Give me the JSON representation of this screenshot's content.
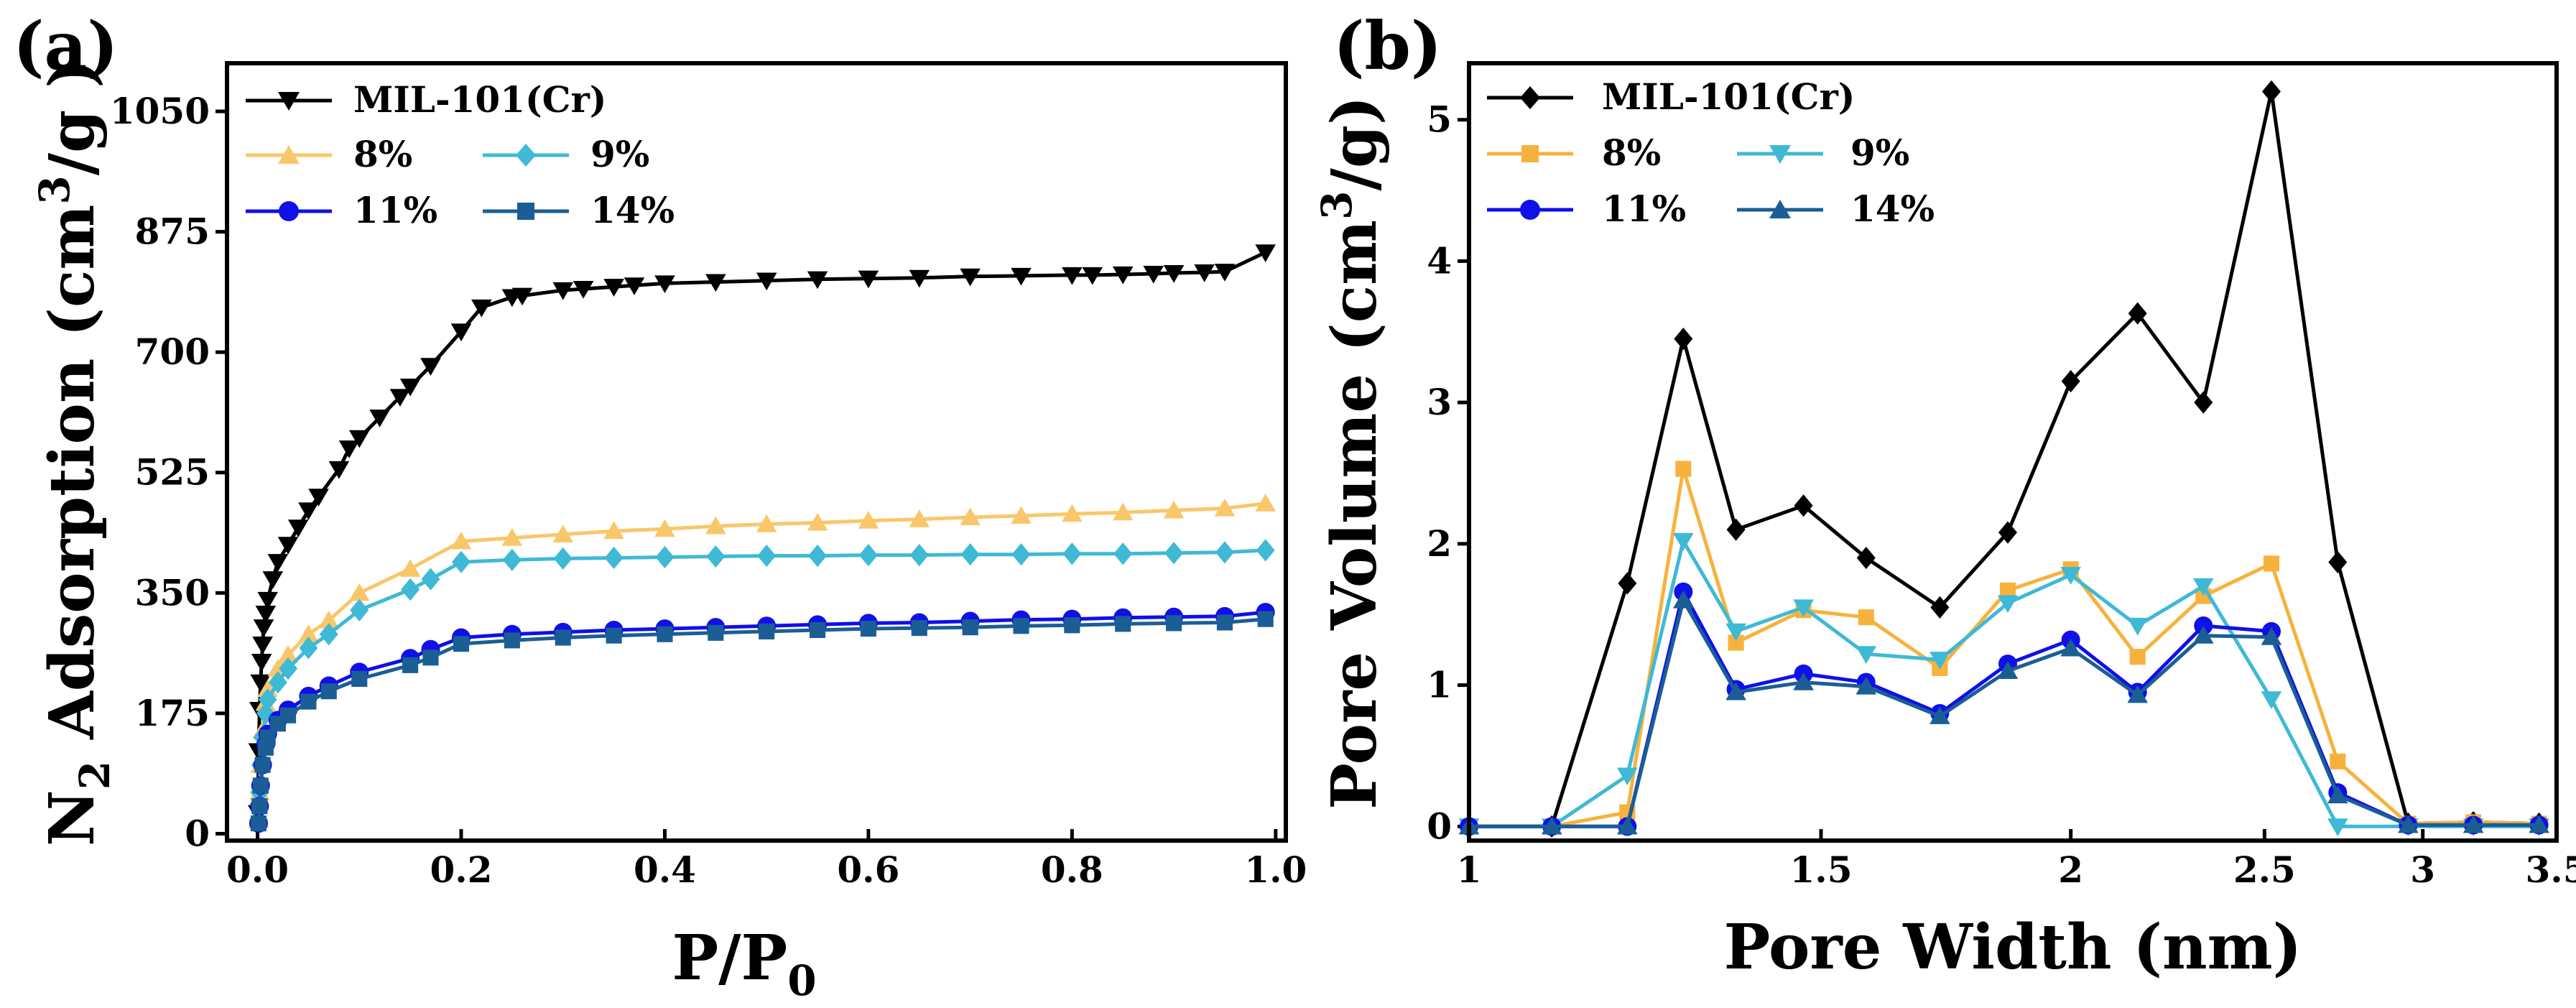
{
  "chart_data": [
    {
      "id": "a",
      "panel_label": "(a)",
      "type": "line",
      "xlabel_main": "P/P",
      "xlabel_sub": "0",
      "ylabel_pre": "N",
      "ylabel_sub": "2",
      "ylabel_mid": " Adsorption (cm",
      "ylabel_sup": "3",
      "ylabel_post": "/g )",
      "xlim": [
        -0.03,
        1.01
      ],
      "ylim": [
        -10,
        1120
      ],
      "x_ticks": [
        0.0,
        0.2,
        0.4,
        0.6,
        0.8,
        1.0
      ],
      "x_tick_labels": [
        "0.0",
        "0.2",
        "0.4",
        "0.6",
        "0.8",
        "1.0"
      ],
      "y_ticks": [
        0,
        175,
        350,
        525,
        700,
        875,
        1050
      ],
      "y_tick_labels": [
        "0",
        "175",
        "350",
        "525",
        "700",
        "875",
        "1050"
      ],
      "legend": [
        "MIL-101(Cr)",
        "8%",
        "9%",
        "11%",
        "14%"
      ],
      "series": [
        {
          "name": "MIL-101(Cr)",
          "color": "#000000",
          "marker": "triangle-down",
          "x": [
            0.0005,
            0.001,
            0.002,
            0.003,
            0.004,
            0.005,
            0.006,
            0.008,
            0.01,
            0.015,
            0.02,
            0.03,
            0.04,
            0.05,
            0.06,
            0.08,
            0.09,
            0.1,
            0.12,
            0.14,
            0.15,
            0.17,
            0.2,
            0.22,
            0.25,
            0.26,
            0.3,
            0.32,
            0.35,
            0.37,
            0.4,
            0.45,
            0.5,
            0.55,
            0.6,
            0.65,
            0.7,
            0.75,
            0.8,
            0.82,
            0.85,
            0.88,
            0.9,
            0.93,
            0.95,
            0.99
          ],
          "y": [
            30,
            120,
            180,
            220,
            250,
            275,
            300,
            320,
            340,
            370,
            395,
            420,
            445,
            470,
            490,
            530,
            560,
            575,
            605,
            635,
            650,
            680,
            730,
            765,
            780,
            782,
            790,
            792,
            795,
            797,
            800,
            802,
            804,
            806,
            807,
            808,
            810,
            811,
            812,
            812,
            813,
            814,
            815,
            816,
            817,
            845
          ]
        },
        {
          "name": "8%",
          "color": "#F9C76A",
          "marker": "triangle-up",
          "x": [
            0.001,
            0.002,
            0.003,
            0.005,
            0.008,
            0.01,
            0.02,
            0.03,
            0.05,
            0.07,
            0.1,
            0.15,
            0.2,
            0.25,
            0.3,
            0.35,
            0.4,
            0.45,
            0.5,
            0.55,
            0.6,
            0.65,
            0.7,
            0.75,
            0.8,
            0.85,
            0.9,
            0.95,
            0.99
          ],
          "y": [
            20,
            60,
            100,
            150,
            190,
            210,
            240,
            260,
            290,
            310,
            350,
            385,
            425,
            430,
            435,
            440,
            443,
            447,
            450,
            452,
            455,
            457,
            460,
            462,
            465,
            467,
            470,
            473,
            480
          ]
        },
        {
          "name": "9%",
          "color": "#3EB9D6",
          "marker": "diamond",
          "x": [
            0.001,
            0.002,
            0.003,
            0.005,
            0.008,
            0.01,
            0.02,
            0.03,
            0.05,
            0.07,
            0.1,
            0.15,
            0.17,
            0.2,
            0.25,
            0.3,
            0.35,
            0.4,
            0.45,
            0.5,
            0.55,
            0.6,
            0.65,
            0.7,
            0.75,
            0.8,
            0.85,
            0.9,
            0.95,
            0.99
          ],
          "y": [
            20,
            60,
            100,
            140,
            175,
            195,
            220,
            240,
            270,
            290,
            325,
            355,
            370,
            395,
            398,
            400,
            401,
            402,
            403,
            404,
            404,
            405,
            405,
            406,
            406,
            407,
            407,
            408,
            409,
            412
          ]
        },
        {
          "name": "11%",
          "color": "#1010E8",
          "marker": "circle",
          "x": [
            0.001,
            0.002,
            0.003,
            0.005,
            0.008,
            0.01,
            0.02,
            0.03,
            0.05,
            0.07,
            0.1,
            0.15,
            0.17,
            0.2,
            0.25,
            0.3,
            0.35,
            0.4,
            0.45,
            0.5,
            0.55,
            0.6,
            0.65,
            0.7,
            0.75,
            0.8,
            0.85,
            0.9,
            0.95,
            0.99
          ],
          "y": [
            15,
            40,
            70,
            100,
            130,
            145,
            165,
            180,
            200,
            215,
            235,
            255,
            268,
            285,
            290,
            293,
            296,
            298,
            300,
            302,
            304,
            306,
            307,
            309,
            311,
            312,
            314,
            315,
            316,
            322
          ]
        },
        {
          "name": "14%",
          "color": "#1A5E95",
          "marker": "square",
          "x": [
            0.001,
            0.002,
            0.003,
            0.005,
            0.008,
            0.01,
            0.02,
            0.03,
            0.05,
            0.07,
            0.1,
            0.15,
            0.17,
            0.2,
            0.25,
            0.3,
            0.35,
            0.4,
            0.45,
            0.5,
            0.55,
            0.6,
            0.65,
            0.7,
            0.75,
            0.8,
            0.85,
            0.9,
            0.95,
            0.99
          ],
          "y": [
            15,
            40,
            70,
            100,
            125,
            140,
            160,
            172,
            192,
            207,
            225,
            245,
            256,
            276,
            281,
            285,
            288,
            290,
            292,
            294,
            296,
            298,
            299,
            300,
            302,
            303,
            305,
            306,
            307,
            312
          ]
        }
      ]
    },
    {
      "id": "b",
      "panel_label": "(b)",
      "type": "line",
      "xlabel": "Pore Width (nm)",
      "ylabel_pre": "Pore Volume (cm",
      "ylabel_sup": "3",
      "ylabel_post": "/g)",
      "x_scale": "log",
      "xlim": [
        1,
        3.5
      ],
      "ylim": [
        -0.1,
        5.4
      ],
      "x_ticks": [
        1,
        1.5,
        2,
        2.5,
        3,
        3.5
      ],
      "x_tick_labels": [
        "1",
        "1.5",
        "2",
        "2.5",
        "3",
        "3.5"
      ],
      "y_ticks": [
        0,
        1,
        2,
        3,
        4,
        5
      ],
      "y_tick_labels": [
        "0",
        "1",
        "2",
        "3",
        "4",
        "5"
      ],
      "legend": [
        "MIL-101(Cr)",
        "8%",
        "9%",
        "11%",
        "14%"
      ],
      "series": [
        {
          "name": "MIL-101(Cr)",
          "color": "#000000",
          "marker": "diamond",
          "x": [
            1.0,
            1.1,
            1.2,
            1.28,
            1.36,
            1.47,
            1.58,
            1.72,
            1.86,
            2.0,
            2.16,
            2.33,
            2.52,
            2.72,
            2.95,
            3.18,
            3.43
          ],
          "y": [
            0,
            0,
            1.72,
            3.45,
            2.1,
            2.27,
            1.9,
            1.55,
            2.08,
            3.15,
            3.63,
            3.0,
            5.2,
            1.87,
            0.02,
            0.03,
            0.02
          ]
        },
        {
          "name": "8%",
          "color": "#F7B23D",
          "marker": "square",
          "x": [
            1.0,
            1.1,
            1.2,
            1.28,
            1.36,
            1.47,
            1.58,
            1.72,
            1.86,
            2.0,
            2.16,
            2.33,
            2.52,
            2.72,
            2.95,
            3.18,
            3.43
          ],
          "y": [
            0,
            0,
            0.1,
            2.53,
            1.3,
            1.53,
            1.48,
            1.12,
            1.67,
            1.82,
            1.2,
            1.63,
            1.86,
            0.46,
            0.02,
            0.03,
            0.02
          ]
        },
        {
          "name": "9%",
          "color": "#3EB9D6",
          "marker": "triangle-down",
          "x": [
            1.0,
            1.1,
            1.2,
            1.28,
            1.36,
            1.47,
            1.58,
            1.72,
            1.86,
            2.0,
            2.16,
            2.33,
            2.52,
            2.72,
            2.95,
            3.18,
            3.43
          ],
          "y": [
            0,
            0,
            0.36,
            2.02,
            1.38,
            1.55,
            1.22,
            1.18,
            1.58,
            1.78,
            1.42,
            1.7,
            0.9,
            0.0,
            0.0,
            0.0,
            0.0
          ]
        },
        {
          "name": "11%",
          "color": "#1010E8",
          "marker": "circle",
          "x": [
            1.0,
            1.1,
            1.2,
            1.28,
            1.36,
            1.47,
            1.58,
            1.72,
            1.86,
            2.0,
            2.16,
            2.33,
            2.52,
            2.72,
            2.95,
            3.18,
            3.43
          ],
          "y": [
            0,
            0,
            0,
            1.66,
            0.97,
            1.08,
            1.02,
            0.8,
            1.15,
            1.32,
            0.95,
            1.42,
            1.38,
            0.24,
            0.01,
            0.01,
            0.01
          ]
        },
        {
          "name": "14%",
          "color": "#1A5E95",
          "marker": "triangle-up",
          "x": [
            1.0,
            1.1,
            1.2,
            1.28,
            1.36,
            1.47,
            1.58,
            1.72,
            1.86,
            2.0,
            2.16,
            2.33,
            2.52,
            2.72,
            2.95,
            3.18,
            3.43
          ],
          "y": [
            0,
            0,
            0,
            1.6,
            0.95,
            1.02,
            0.99,
            0.78,
            1.1,
            1.26,
            0.93,
            1.35,
            1.34,
            0.22,
            0.01,
            0.01,
            0.01
          ]
        }
      ]
    }
  ]
}
